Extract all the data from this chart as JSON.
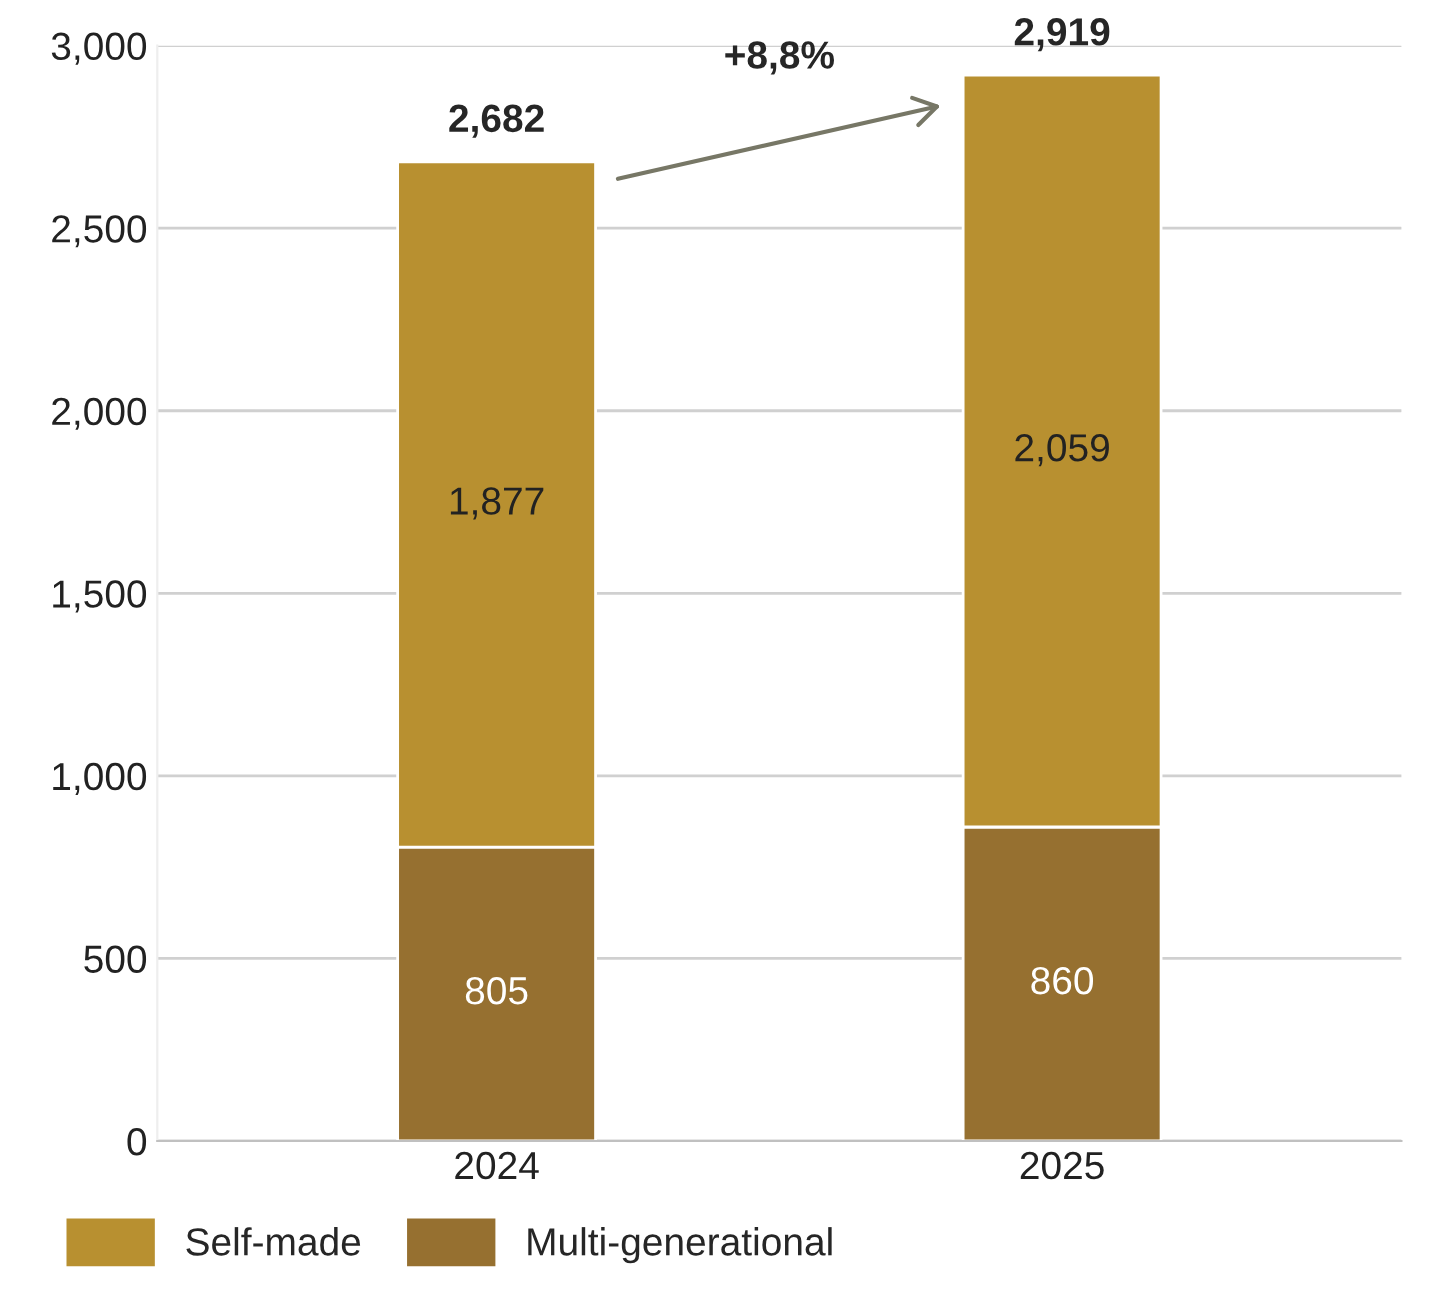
{
  "chart_data": {
    "type": "bar",
    "stacked": true,
    "categories": [
      "2024",
      "2025"
    ],
    "series": [
      {
        "name": "Multi-generational",
        "color": "#967030",
        "values": [
          805,
          860
        ],
        "value_labels": [
          "805",
          "860"
        ]
      },
      {
        "name": "Self-made",
        "color": "#b89030",
        "values": [
          1877,
          2059
        ],
        "value_labels": [
          "1,877",
          "2,059"
        ]
      }
    ],
    "totals": [
      "2,682",
      "2,919"
    ],
    "annotations": [
      "+8,8%"
    ],
    "ylim": [
      0,
      3000
    ],
    "yticks": [
      0,
      {
        "value": 500,
        "label": "500"
      },
      {
        "value": 1000,
        "label": "1,000"
      },
      {
        "value": 1500,
        "label": "1,500"
      },
      {
        "value": 2000,
        "label": "2,000"
      },
      {
        "value": 2500,
        "label": "2,500"
      },
      {
        "value": 3000,
        "label": "3,000"
      }
    ],
    "grid": "y",
    "legend": "bottom"
  }
}
